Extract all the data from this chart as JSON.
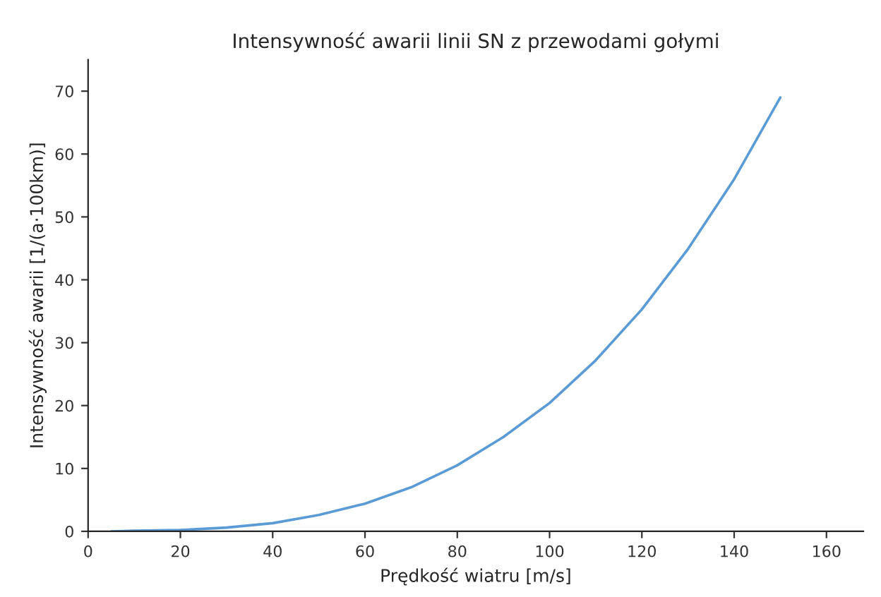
{
  "chart_data": {
    "type": "line",
    "title": "Intensywność awarii linii SN z przewodami gołymi",
    "xlabel": "Prędkość wiatru [m/s]",
    "ylabel": "Intensywność awarii [1/(a·100km)]",
    "series": [
      {
        "color": "#5b9bd5",
        "x": [
          5,
          10,
          20,
          30,
          40,
          50,
          60,
          70,
          80,
          90,
          100,
          110,
          120,
          130,
          140,
          150
        ],
        "values": [
          0,
          0.1,
          0.2,
          0.6,
          1.3,
          2.6,
          4.4,
          7,
          10.5,
          15,
          20.4,
          27.2,
          35.3,
          44.9,
          56,
          69
        ]
      }
    ],
    "xlim": [
      0,
      168
    ],
    "xticks": [
      0,
      20,
      40,
      60,
      80,
      100,
      120,
      140,
      160
    ],
    "ylim": [
      0,
      75
    ],
    "yticks": [
      0,
      10,
      20,
      30,
      40,
      50,
      60,
      70
    ],
    "grid": false,
    "marker": "none",
    "line_style": "solid"
  }
}
